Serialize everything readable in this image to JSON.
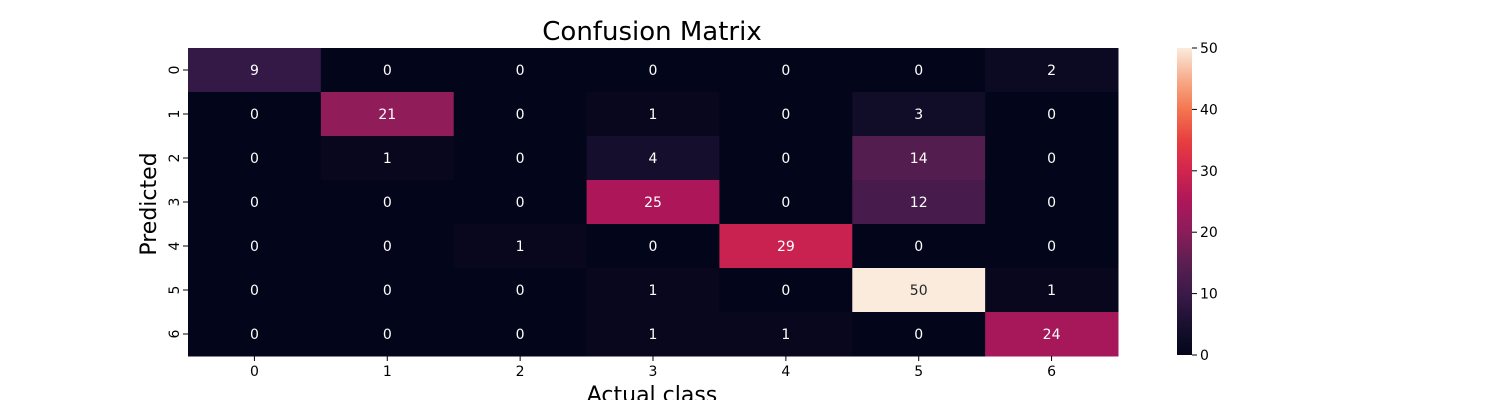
{
  "chart_data": {
    "type": "heatmap",
    "title": "Confusion Matrix",
    "xlabel": "Actual class",
    "ylabel": "Predicted",
    "x_categories": [
      "0",
      "1",
      "2",
      "3",
      "4",
      "5",
      "6"
    ],
    "y_categories": [
      "0",
      "1",
      "2",
      "3",
      "4",
      "5",
      "6"
    ],
    "values": [
      [
        9,
        0,
        0,
        0,
        0,
        0,
        2
      ],
      [
        0,
        21,
        0,
        1,
        0,
        3,
        0
      ],
      [
        0,
        1,
        0,
        4,
        0,
        14,
        0
      ],
      [
        0,
        0,
        0,
        25,
        0,
        12,
        0
      ],
      [
        0,
        0,
        1,
        0,
        29,
        0,
        0
      ],
      [
        0,
        0,
        0,
        1,
        0,
        50,
        1
      ],
      [
        0,
        0,
        0,
        1,
        1,
        0,
        24
      ]
    ],
    "colorbar": {
      "min": 0,
      "max": 50,
      "ticks": [
        "0",
        "10",
        "20",
        "30",
        "40",
        "50"
      ],
      "colormap": "rocket"
    },
    "grid": false,
    "annotations": true
  }
}
